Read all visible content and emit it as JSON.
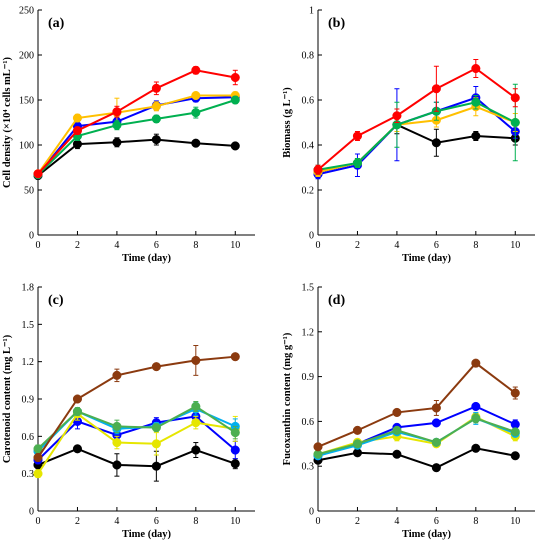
{
  "chart_data": [
    {
      "type": "line",
      "panel_label": "(a)",
      "xlabel": "Time (day)",
      "ylabel": "Cell density (×10⁴ cells mL⁻¹)",
      "xlim": [
        0,
        11
      ],
      "ylim": [
        0,
        250
      ],
      "xticks": [
        0,
        2,
        4,
        6,
        8,
        10
      ],
      "yticks": [
        0,
        50,
        100,
        150,
        200,
        250
      ],
      "x": [
        0,
        2,
        4,
        6,
        8,
        10
      ],
      "series": [
        {
          "color": "#000000",
          "values": [
            66,
            101,
            103,
            106,
            102,
            99
          ],
          "errors": [
            3,
            5,
            5,
            6,
            3,
            3
          ]
        },
        {
          "color": "#0000ff",
          "values": [
            67,
            121,
            126,
            144,
            152,
            153
          ],
          "errors": [
            3,
            5,
            5,
            5,
            4,
            4
          ]
        },
        {
          "color": "#ffc000",
          "values": [
            68,
            130,
            136,
            143,
            155,
            155
          ],
          "errors": [
            3,
            4,
            16,
            5,
            3,
            4
          ]
        },
        {
          "color": "#00b050",
          "values": [
            67,
            110,
            122,
            129,
            136,
            150
          ],
          "errors": [
            3,
            5,
            5,
            4,
            6,
            4
          ]
        },
        {
          "color": "#ff0000",
          "values": [
            68,
            116,
            137,
            163,
            183,
            175
          ],
          "errors": [
            3,
            4,
            6,
            7,
            4,
            8
          ]
        }
      ]
    },
    {
      "type": "line",
      "panel_label": "(b)",
      "xlabel": "Time (day)",
      "ylabel": "Biomass (g L⁻¹)",
      "xlim": [
        0,
        11
      ],
      "ylim": [
        0,
        1
      ],
      "xticks": [
        0,
        2,
        4,
        6,
        8,
        10
      ],
      "yticks": [
        0,
        0.2,
        0.4,
        0.6,
        0.8,
        1
      ],
      "x": [
        0,
        2,
        4,
        6,
        8,
        10
      ],
      "series": [
        {
          "color": "#000000",
          "values": [
            0.28,
            0.32,
            0.49,
            0.41,
            0.44,
            0.43
          ],
          "errors": [
            0.02,
            0.02,
            0.04,
            0.06,
            0.02,
            0.03
          ]
        },
        {
          "color": "#0000ff",
          "values": [
            0.27,
            0.31,
            0.49,
            0.55,
            0.61,
            0.46
          ],
          "errors": [
            0.02,
            0.05,
            0.16,
            0.04,
            0.05,
            0.03
          ]
        },
        {
          "color": "#ffc000",
          "values": [
            0.28,
            0.32,
            0.49,
            0.51,
            0.57,
            0.5
          ],
          "errors": [
            0.02,
            0.02,
            0.03,
            0.03,
            0.04,
            0.04
          ]
        },
        {
          "color": "#00b050",
          "values": [
            0.29,
            0.32,
            0.49,
            0.55,
            0.59,
            0.5
          ],
          "errors": [
            0.02,
            0.02,
            0.1,
            0.04,
            0.03,
            0.17
          ]
        },
        {
          "color": "#ff0000",
          "values": [
            0.29,
            0.44,
            0.53,
            0.65,
            0.74,
            0.61
          ],
          "errors": [
            0.02,
            0.02,
            0.03,
            0.1,
            0.04,
            0.04
          ]
        }
      ]
    },
    {
      "type": "line",
      "panel_label": "(c)",
      "xlabel": "Time (day)",
      "ylabel": "Carotenoid content (mg L⁻¹)",
      "xlim": [
        0,
        11
      ],
      "ylim": [
        0,
        1.8
      ],
      "xticks": [
        0,
        2,
        4,
        6,
        8,
        10
      ],
      "yticks": [
        0,
        0.3,
        0.6,
        0.9,
        1.2,
        1.5,
        1.8
      ],
      "x": [
        0,
        2,
        4,
        6,
        8,
        10
      ],
      "series": [
        {
          "color": "#000000",
          "values": [
            0.37,
            0.5,
            0.37,
            0.36,
            0.49,
            0.38
          ],
          "errors": [
            0.04,
            0.02,
            0.09,
            0.12,
            0.06,
            0.04
          ]
        },
        {
          "color": "#0000ff",
          "values": [
            0.41,
            0.72,
            0.61,
            0.71,
            0.76,
            0.49
          ],
          "errors": [
            0.03,
            0.06,
            0.06,
            0.04,
            0.05,
            0.07
          ]
        },
        {
          "color": "#e6e600",
          "values": [
            0.3,
            0.78,
            0.55,
            0.54,
            0.71,
            0.66
          ],
          "errors": [
            0.03,
            0.05,
            0.05,
            0.09,
            0.05,
            0.1
          ]
        },
        {
          "color": "#00b0f0",
          "values": [
            0.48,
            0.8,
            0.66,
            0.68,
            0.82,
            0.68
          ],
          "errors": [
            0.03,
            0.03,
            0.04,
            0.03,
            0.05,
            0.06
          ]
        },
        {
          "color": "#4caf50",
          "values": [
            0.5,
            0.8,
            0.68,
            0.67,
            0.84,
            0.63
          ],
          "errors": [
            0.03,
            0.03,
            0.05,
            0.03,
            0.04,
            0.05
          ]
        },
        {
          "color": "#8b3a0f",
          "values": [
            0.43,
            0.9,
            1.09,
            1.16,
            1.21,
            1.24
          ],
          "errors": [
            0.03,
            0.02,
            0.05,
            0.02,
            0.12,
            0.02
          ]
        }
      ]
    },
    {
      "type": "line",
      "panel_label": "(d)",
      "xlabel": "Time (day)",
      "ylabel": "Fucoxanthin content (mg g⁻¹)",
      "xlim": [
        0,
        11
      ],
      "ylim": [
        0,
        1.5
      ],
      "xticks": [
        0,
        2,
        4,
        6,
        8,
        10
      ],
      "yticks": [
        0,
        0.3,
        0.6,
        0.9,
        1.2,
        1.5
      ],
      "x": [
        0,
        2,
        4,
        6,
        8,
        10
      ],
      "series": [
        {
          "color": "#000000",
          "values": [
            0.34,
            0.39,
            0.38,
            0.29,
            0.42,
            0.37
          ],
          "errors": [
            0.02,
            0.02,
            0.02,
            0.02,
            0.02,
            0.02
          ]
        },
        {
          "color": "#0000ff",
          "values": [
            0.37,
            0.45,
            0.56,
            0.59,
            0.7,
            0.58
          ],
          "errors": [
            0.02,
            0.02,
            0.02,
            0.02,
            0.02,
            0.03
          ]
        },
        {
          "color": "#e6e600",
          "values": [
            0.38,
            0.46,
            0.5,
            0.45,
            0.63,
            0.5
          ],
          "errors": [
            0.02,
            0.02,
            0.03,
            0.02,
            0.03,
            0.03
          ]
        },
        {
          "color": "#00b0f0",
          "values": [
            0.37,
            0.44,
            0.53,
            0.46,
            0.62,
            0.52
          ],
          "errors": [
            0.02,
            0.02,
            0.02,
            0.02,
            0.04,
            0.02
          ]
        },
        {
          "color": "#4caf50",
          "values": [
            0.38,
            0.45,
            0.54,
            0.46,
            0.62,
            0.53
          ],
          "errors": [
            0.02,
            0.02,
            0.02,
            0.02,
            0.03,
            0.02
          ]
        },
        {
          "color": "#8b3a0f",
          "values": [
            0.43,
            0.54,
            0.66,
            0.69,
            0.99,
            0.79
          ],
          "errors": [
            0.02,
            0.02,
            0.02,
            0.05,
            0.02,
            0.04
          ]
        }
      ]
    }
  ]
}
